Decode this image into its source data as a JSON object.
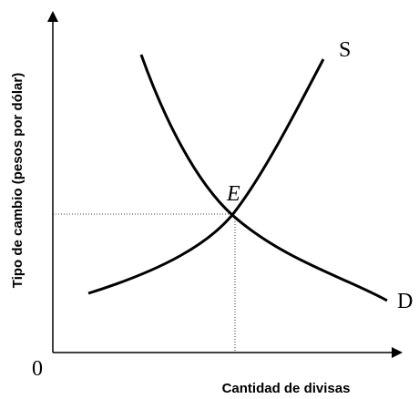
{
  "y_axis_label": "Tipo de cambio (pesos por dólar)",
  "x_axis_label": "Cantidad de divisas",
  "origin_label": "0",
  "supply_label": "S",
  "demand_label": "D",
  "equilibrium_label": "E"
}
